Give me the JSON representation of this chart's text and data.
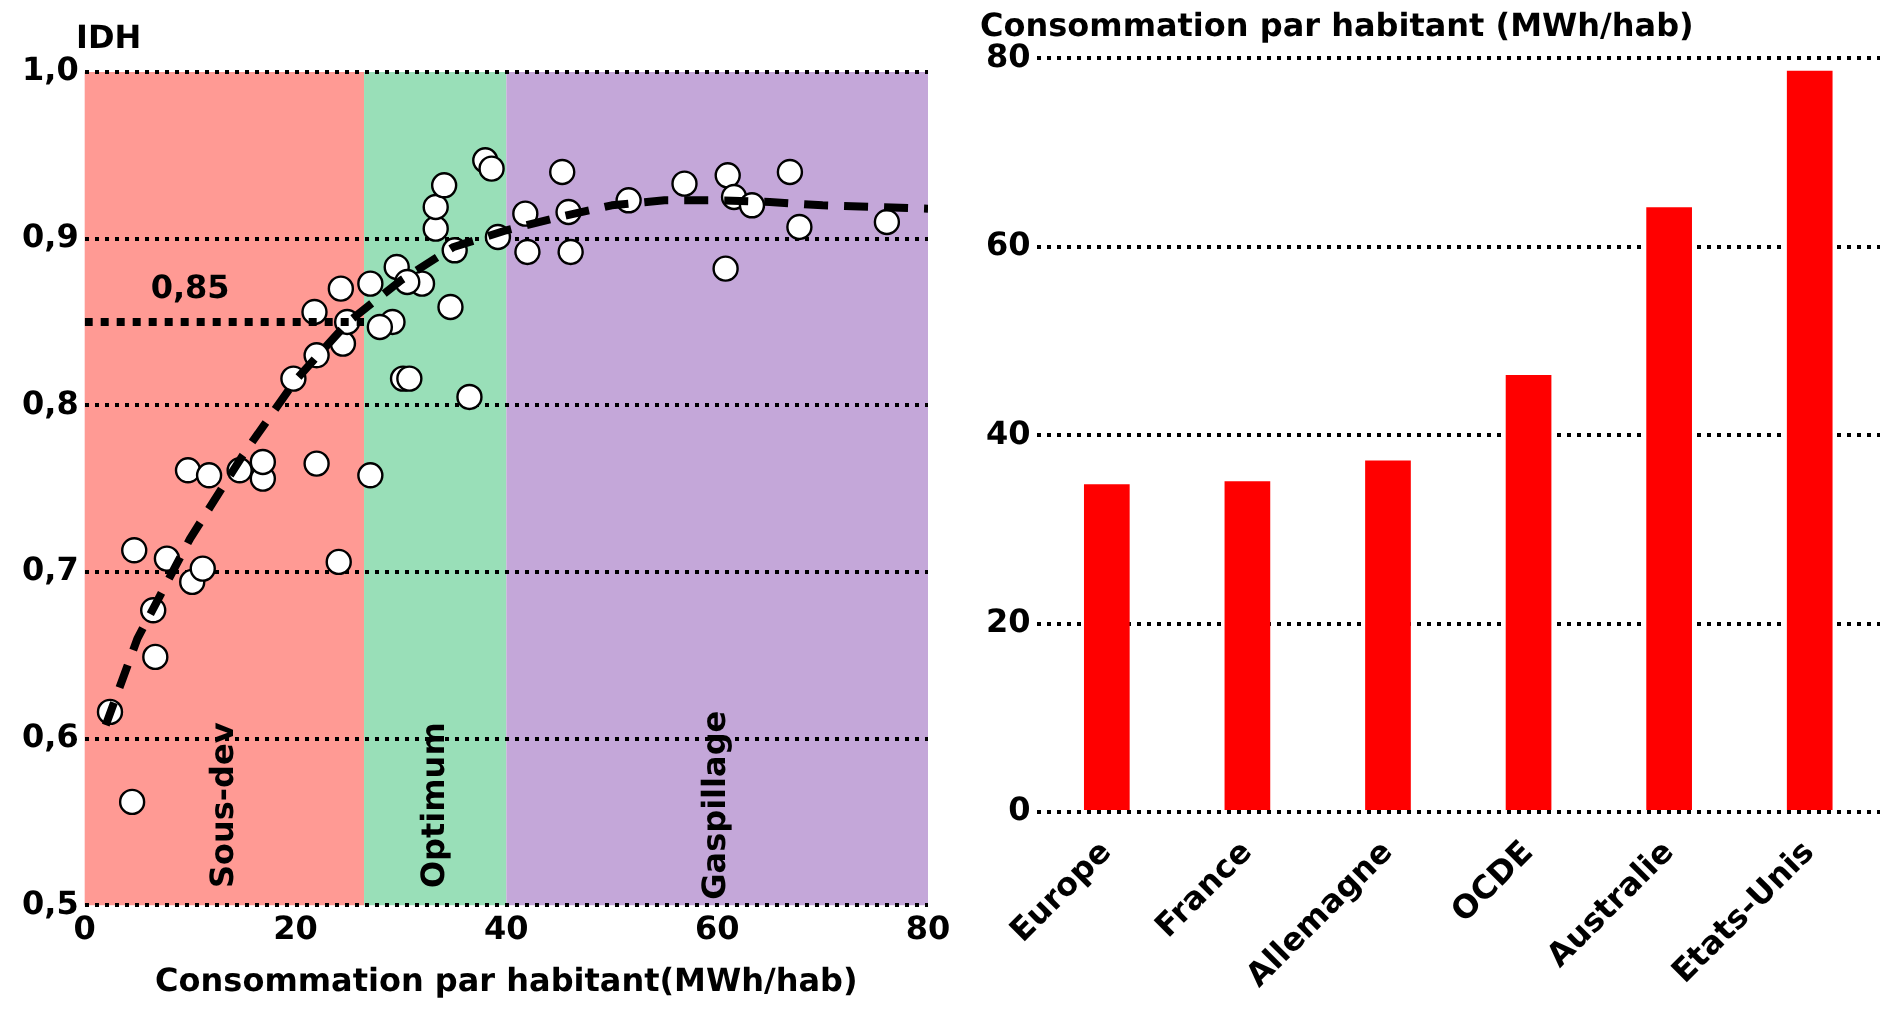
{
  "chart_data": [
    {
      "type": "scatter",
      "ylabel": "IDH",
      "xlabel": "Consommation par habitant(MWh/hab)",
      "xlim": [
        0,
        80
      ],
      "xticks": [
        0,
        20,
        40,
        60,
        80
      ],
      "ylim": [
        0.5,
        1.0
      ],
      "yticks": [
        {
          "value": 0.5,
          "label": "0,5"
        },
        {
          "value": 0.6,
          "label": "0,6"
        },
        {
          "value": 0.7,
          "label": "0,7"
        },
        {
          "value": 0.8,
          "label": "0,8"
        },
        {
          "value": 0.9,
          "label": "0,9"
        },
        {
          "value": 1.0,
          "label": "1,0"
        }
      ],
      "grid": "y",
      "bands": [
        {
          "axis": "x",
          "from": 0,
          "to": 26.5,
          "label": "Sous-dev",
          "color": "#ff9a94"
        },
        {
          "axis": "x",
          "from": 26.5,
          "to": 40,
          "label": "Optimum",
          "color": "#99dfb8"
        },
        {
          "axis": "x",
          "from": 40,
          "to": 80,
          "label": "Gaspillage",
          "color": "#c4a7d9"
        }
      ],
      "annotations": [
        {
          "text": "0,85",
          "x": 10,
          "y": 0.85
        }
      ],
      "series": [
        {
          "type": "scatter",
          "marker": "circle",
          "color": "#ffffff",
          "x": [
            2.4,
            4.5,
            4.7,
            6.5,
            6.7,
            7.8,
            10.2,
            11.2,
            9.8,
            11.8,
            14.7,
            16.9,
            16.9,
            22.0,
            24.1,
            27.1,
            19.8,
            22.0,
            21.8,
            24.5,
            24.9,
            24.3,
            27.1,
            29.6,
            30.2,
            30.8,
            29.2,
            28.0,
            32.0,
            30.6,
            34.7,
            35.1,
            36.5,
            33.3,
            33.3,
            34.1,
            38.0,
            38.6,
            39.2,
            41.8,
            42.0,
            45.3,
            45.9,
            46.1,
            51.6,
            56.9,
            61.0,
            61.6,
            63.3,
            66.9,
            60.8,
            67.8,
            76.1
          ],
          "values": [
            0.616,
            0.562,
            0.713,
            0.677,
            0.649,
            0.708,
            0.694,
            0.702,
            0.761,
            0.758,
            0.761,
            0.756,
            0.766,
            0.765,
            0.706,
            0.758,
            0.816,
            0.83,
            0.856,
            0.837,
            0.85,
            0.87,
            0.873,
            0.883,
            0.816,
            0.816,
            0.85,
            0.847,
            0.873,
            0.874,
            0.859,
            0.893,
            0.805,
            0.906,
            0.919,
            0.932,
            0.947,
            0.942,
            0.901,
            0.915,
            0.892,
            0.94,
            0.916,
            0.892,
            0.923,
            0.933,
            0.938,
            0.925,
            0.92,
            0.94,
            0.882,
            0.907,
            0.91
          ]
        },
        {
          "type": "line",
          "marker": "none",
          "color": "#000000",
          "line_style": "dashed",
          "x": [
            2,
            5,
            10,
            15,
            20,
            25,
            30,
            35,
            40,
            45,
            50,
            55,
            60,
            65,
            70,
            80
          ],
          "values": [
            0.608,
            0.66,
            0.72,
            0.77,
            0.815,
            0.85,
            0.875,
            0.895,
            0.905,
            0.913,
            0.92,
            0.923,
            0.923,
            0.922,
            0.92,
            0.918
          ]
        },
        {
          "type": "line",
          "marker": "none",
          "color": "#000000",
          "line_style": "dotted",
          "x": [
            0,
            26.5
          ],
          "values": [
            0.85,
            0.85
          ]
        }
      ]
    },
    {
      "type": "bar",
      "title": "Consommation par habitant (MWh/hab)",
      "categories": [
        "Europe",
        "France",
        "Allemagne",
        "OCDE",
        "Australie",
        "Etats-Unis"
      ],
      "values": [
        34.8,
        35.1,
        37.3,
        46.4,
        64.2,
        78.7
      ],
      "color": "#ff0000",
      "ylim": [
        0,
        80
      ],
      "yticks": [
        0,
        20,
        40,
        60,
        80
      ],
      "grid": "y"
    }
  ]
}
